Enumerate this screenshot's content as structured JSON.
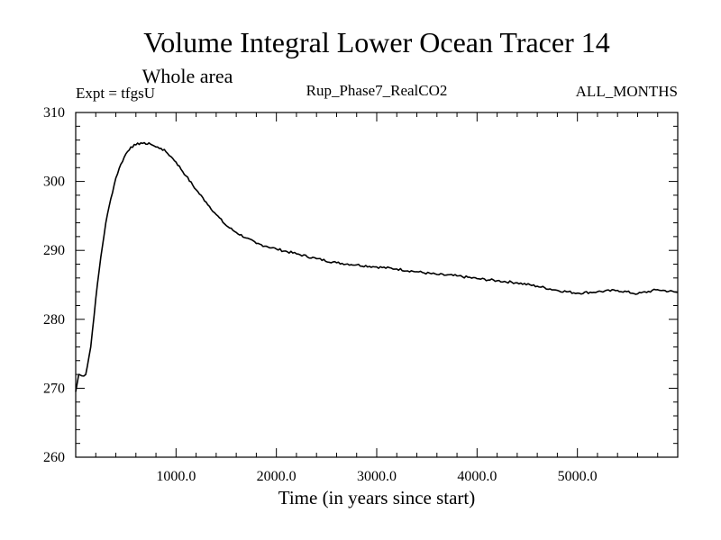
{
  "chart_data": {
    "type": "line",
    "title": "Volume Integral Lower Ocean Tracer 14",
    "subtitle": "Whole area",
    "experiment_label": "Expt = tfgsU",
    "run_label": "Rup_Phase7_RealCO2",
    "months_label": "ALL_MONTHS",
    "xlabel": "Time (in years since start)",
    "ylabel": "",
    "xlim": [
      0,
      6000
    ],
    "ylim": [
      260,
      310
    ],
    "x_ticks": [
      1000,
      2000,
      3000,
      4000,
      5000
    ],
    "x_tick_labels": [
      "1000.0",
      "2000.0",
      "3000.0",
      "4000.0",
      "5000.0"
    ],
    "y_ticks": [
      260,
      270,
      280,
      290,
      300,
      310
    ],
    "y_tick_labels": [
      "260",
      "270",
      "280",
      "290",
      "300",
      "310"
    ],
    "grid": false,
    "series": [
      {
        "name": "Volume Integral Lower Ocean Tracer 14",
        "x": [
          0,
          30,
          60,
          100,
          150,
          200,
          250,
          300,
          350,
          400,
          450,
          500,
          550,
          600,
          650,
          700,
          730,
          760,
          800,
          850,
          900,
          950,
          1000,
          1100,
          1200,
          1300,
          1400,
          1500,
          1600,
          1700,
          1800,
          1900,
          2000,
          2200,
          2400,
          2600,
          2800,
          3000,
          3200,
          3400,
          3600,
          3800,
          4000,
          4200,
          4400,
          4600,
          4800,
          5000,
          5200,
          5400,
          5600,
          5800,
          6000
        ],
        "y": [
          269.5,
          272.0,
          271.8,
          272.0,
          276.0,
          283.0,
          289.0,
          294.0,
          297.5,
          300.5,
          302.5,
          304.0,
          305.0,
          305.3,
          305.6,
          305.4,
          305.6,
          305.3,
          305.0,
          304.8,
          304.3,
          303.6,
          302.8,
          300.8,
          298.8,
          297.0,
          295.2,
          293.6,
          292.6,
          291.8,
          291.0,
          290.6,
          290.2,
          289.5,
          288.8,
          288.2,
          287.9,
          287.6,
          287.3,
          286.9,
          286.5,
          286.3,
          285.9,
          285.6,
          285.3,
          284.8,
          284.2,
          283.8,
          284.0,
          284.2,
          283.7,
          284.3,
          283.9
        ]
      }
    ]
  }
}
